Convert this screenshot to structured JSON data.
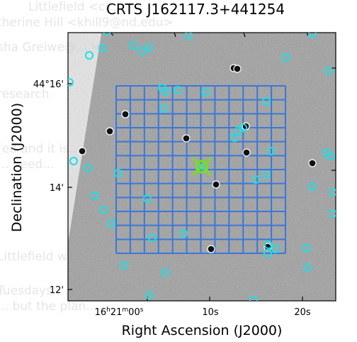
{
  "background_email": {
    "line1": "Littlefield <cl... ",
    "line2": "therine Hill <khill9@nd.edu>",
    "line3": "sha Greiwe@... <",
    "line4": "research",
    "line5": "[ed and it is...",
    "line6": "... need...",
    "line7": "Littlefield wrote:",
    "line8": "Tuesdays... Thursdays...",
    "line9": "... but the plan... ..."
  },
  "chart_data": {
    "type": "finder_chart",
    "title": "CRTS J162117.3+441254",
    "xlabel": "Right Ascension (J2000)",
    "ylabel": "Declination (J2000)",
    "x_ticks": [
      {
        "label_h": "16",
        "label_m": "21",
        "label_s": "00",
        "label_plain": "",
        "ra_s": 0
      },
      {
        "label_h": "",
        "label_m": "",
        "label_s": "",
        "label_plain": "10s",
        "ra_s": 10
      },
      {
        "label_h": "",
        "label_m": "",
        "label_s": "",
        "label_plain": "20s",
        "ra_s": 20
      }
    ],
    "y_ticks": [
      {
        "label": "44°16'",
        "dec_arcmin": 16
      },
      {
        "label": "14'",
        "dec_arcmin": 14
      },
      {
        "label": "12'",
        "dec_arcmin": 12
      }
    ],
    "grid": {
      "rows": 12,
      "cols": 12,
      "color": "#3a78d8"
    },
    "target_marker": {
      "color": "#7cdc1e"
    },
    "circle_color": "#19e0e8",
    "sources_cyan": [
      [
        126,
        78
      ],
      [
        145,
        68
      ],
      [
        188,
        64
      ],
      [
        201,
        72
      ],
      [
        211,
        67
      ],
      [
        266,
        50
      ],
      [
        404,
        81
      ],
      [
        441,
        48
      ],
      [
        464,
        100
      ],
      [
        234,
        129
      ],
      [
        229,
        124
      ],
      [
        251,
        127
      ],
      [
        290,
        130
      ],
      [
        376,
        143
      ],
      [
        231,
        153
      ],
      [
        337,
        184
      ],
      [
        343,
        180
      ],
      [
        331,
        194
      ],
      [
        383,
        213
      ],
      [
        461,
        215
      ],
      [
        467,
        220
      ],
      [
        104,
        227
      ],
      [
        124,
        237
      ],
      [
        167,
        244
      ],
      [
        361,
        253
      ],
      [
        376,
        246
      ],
      [
        441,
        263
      ],
      [
        470,
        271
      ],
      [
        134,
        276
      ],
      [
        208,
        280
      ],
      [
        146,
        296
      ],
      [
        470,
        301
      ],
      [
        157,
        315
      ],
      [
        259,
        329
      ],
      [
        215,
        335
      ],
      [
        378,
        357
      ],
      [
        389,
        351
      ],
      [
        433,
        350
      ],
      [
        379,
        345
      ],
      [
        175,
        374
      ],
      [
        233,
        384
      ],
      [
        434,
        377
      ],
      [
        211,
        416
      ],
      [
        358,
        423
      ],
      [
        151,
        44
      ],
      [
        98,
        116
      ]
    ],
    "sources_dark": [
      [
        177,
        161
      ],
      [
        155,
        185
      ],
      [
        116,
        213
      ],
      [
        263,
        195
      ],
      [
        347,
        178
      ],
      [
        348,
        215
      ],
      [
        441,
        230
      ],
      [
        305,
        260
      ],
      [
        330,
        96
      ],
      [
        335,
        97
      ],
      [
        378,
        348
      ],
      [
        298,
        351
      ]
    ],
    "sources_other": [
      [
        285,
        235
      ]
    ]
  }
}
